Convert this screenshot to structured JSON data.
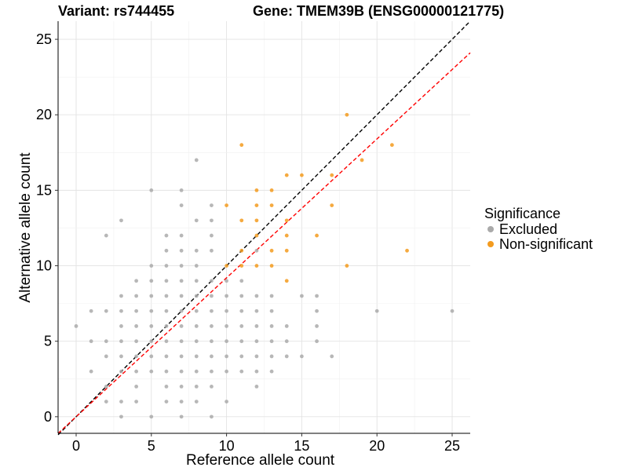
{
  "chart_data": {
    "type": "scatter",
    "title_left": "Variant: rs744455",
    "title_right": "Gene: TMEM39B (ENSG00000121775)",
    "xlabel": "Reference allele count",
    "ylabel": "Alternative allele count",
    "xlim": [
      -1.2,
      26.2
    ],
    "ylim": [
      -1.1,
      26.2
    ],
    "x_ticks": [
      0,
      5,
      10,
      15,
      20,
      25
    ],
    "y_ticks": [
      0,
      5,
      10,
      15,
      20,
      25
    ],
    "grid": true,
    "legend": {
      "title": "Significance",
      "placement": "right",
      "entries": [
        {
          "name": "Excluded",
          "color": "#aaaaaa"
        },
        {
          "name": "Non-significant",
          "color": "#f39b1f"
        }
      ]
    },
    "reference_lines": [
      {
        "name": "y = x",
        "slope": 1.0,
        "intercept": 0,
        "color": "#000000",
        "style": "dashed"
      },
      {
        "name": "fitted",
        "slope": 0.92,
        "intercept": 0,
        "color": "#ff0000",
        "style": "dashed"
      }
    ],
    "series": [
      {
        "name": "Excluded",
        "color": "#aaaaaa",
        "points": [
          [
            0,
            6
          ],
          [
            1,
            7
          ],
          [
            1,
            5
          ],
          [
            1,
            3
          ],
          [
            2,
            7
          ],
          [
            2,
            5
          ],
          [
            2,
            4
          ],
          [
            2,
            2
          ],
          [
            2,
            1
          ],
          [
            2,
            12
          ],
          [
            3,
            13
          ],
          [
            3,
            8
          ],
          [
            3,
            7
          ],
          [
            3,
            6
          ],
          [
            3,
            5
          ],
          [
            3,
            4
          ],
          [
            3,
            3
          ],
          [
            3,
            1
          ],
          [
            3,
            0
          ],
          [
            4,
            9
          ],
          [
            4,
            8
          ],
          [
            4,
            7
          ],
          [
            4,
            6
          ],
          [
            4,
            5
          ],
          [
            4,
            4
          ],
          [
            4,
            3
          ],
          [
            4,
            2
          ],
          [
            4,
            1
          ],
          [
            5,
            15
          ],
          [
            5,
            10
          ],
          [
            5,
            9
          ],
          [
            5,
            8
          ],
          [
            5,
            7
          ],
          [
            5,
            6
          ],
          [
            5,
            5
          ],
          [
            5,
            4
          ],
          [
            5,
            3
          ],
          [
            5,
            0
          ],
          [
            6,
            12
          ],
          [
            6,
            11
          ],
          [
            6,
            10
          ],
          [
            6,
            9
          ],
          [
            6,
            8
          ],
          [
            6,
            7
          ],
          [
            6,
            6
          ],
          [
            6,
            5
          ],
          [
            6,
            4
          ],
          [
            6,
            3
          ],
          [
            6,
            2
          ],
          [
            6,
            1
          ],
          [
            7,
            15
          ],
          [
            7,
            14
          ],
          [
            7,
            12
          ],
          [
            7,
            11
          ],
          [
            7,
            10
          ],
          [
            7,
            9
          ],
          [
            7,
            8
          ],
          [
            7,
            7
          ],
          [
            7,
            6
          ],
          [
            7,
            5
          ],
          [
            7,
            4
          ],
          [
            7,
            3
          ],
          [
            7,
            2
          ],
          [
            7,
            1
          ],
          [
            7,
            0
          ],
          [
            8,
            17
          ],
          [
            8,
            13
          ],
          [
            8,
            11
          ],
          [
            8,
            10
          ],
          [
            8,
            9
          ],
          [
            8,
            8
          ],
          [
            8,
            7
          ],
          [
            8,
            6
          ],
          [
            8,
            5
          ],
          [
            8,
            4
          ],
          [
            8,
            3
          ],
          [
            8,
            2
          ],
          [
            8,
            1
          ],
          [
            9,
            14
          ],
          [
            9,
            13
          ],
          [
            9,
            12
          ],
          [
            9,
            11
          ],
          [
            9,
            9
          ],
          [
            9,
            8
          ],
          [
            9,
            7
          ],
          [
            9,
            6
          ],
          [
            9,
            5
          ],
          [
            9,
            4
          ],
          [
            9,
            3
          ],
          [
            9,
            2
          ],
          [
            9,
            0
          ],
          [
            10,
            9
          ],
          [
            10,
            8
          ],
          [
            10,
            7
          ],
          [
            10,
            6
          ],
          [
            10,
            5
          ],
          [
            10,
            4
          ],
          [
            10,
            3
          ],
          [
            10,
            1
          ],
          [
            11,
            9
          ],
          [
            11,
            8
          ],
          [
            11,
            7
          ],
          [
            11,
            6
          ],
          [
            11,
            5
          ],
          [
            11,
            4
          ],
          [
            11,
            3
          ],
          [
            12,
            11
          ],
          [
            12,
            8
          ],
          [
            12,
            7
          ],
          [
            12,
            6
          ],
          [
            12,
            5
          ],
          [
            12,
            4
          ],
          [
            12,
            3
          ],
          [
            12,
            2
          ],
          [
            13,
            8
          ],
          [
            13,
            7
          ],
          [
            13,
            6
          ],
          [
            13,
            5
          ],
          [
            13,
            4
          ],
          [
            13,
            3
          ],
          [
            14,
            6
          ],
          [
            14,
            5
          ],
          [
            14,
            4
          ],
          [
            15,
            8
          ],
          [
            15,
            4
          ],
          [
            16,
            8
          ],
          [
            16,
            7
          ],
          [
            16,
            6
          ],
          [
            16,
            5
          ],
          [
            17,
            4
          ],
          [
            20,
            7
          ],
          [
            25,
            7
          ]
        ]
      },
      {
        "name": "Non-significant",
        "color": "#f39b1f",
        "points": [
          [
            10,
            14
          ],
          [
            10,
            10
          ],
          [
            11,
            18
          ],
          [
            11,
            13
          ],
          [
            11,
            11
          ],
          [
            11,
            10
          ],
          [
            12,
            15
          ],
          [
            12,
            14
          ],
          [
            12,
            13
          ],
          [
            12,
            12
          ],
          [
            12,
            10
          ],
          [
            13,
            15
          ],
          [
            13,
            14
          ],
          [
            13,
            11
          ],
          [
            13,
            10
          ],
          [
            14,
            16
          ],
          [
            14,
            13
          ],
          [
            14,
            12
          ],
          [
            14,
            11
          ],
          [
            14,
            9
          ],
          [
            15,
            16
          ],
          [
            16,
            12
          ],
          [
            17,
            16
          ],
          [
            17,
            14
          ],
          [
            18,
            20
          ],
          [
            18,
            10
          ],
          [
            19,
            17
          ],
          [
            21,
            18
          ],
          [
            22,
            11
          ]
        ]
      }
    ]
  }
}
